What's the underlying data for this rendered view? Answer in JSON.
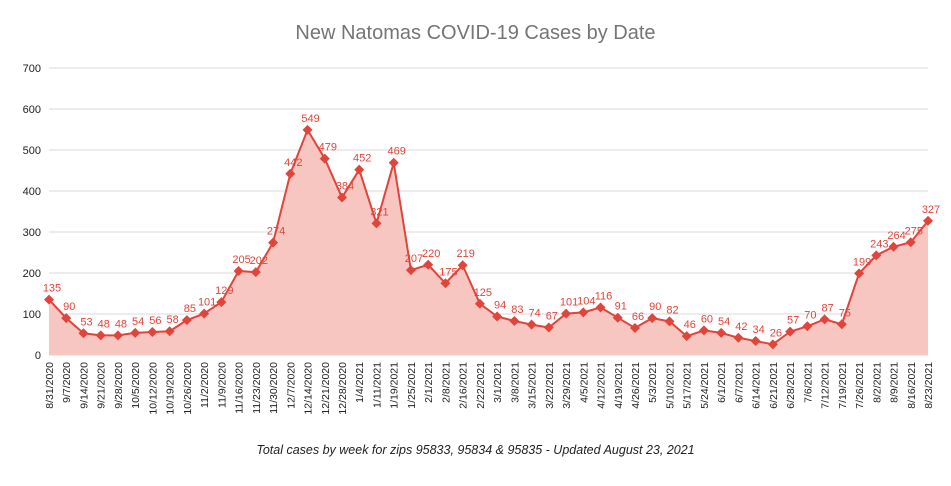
{
  "chart_data": {
    "type": "area",
    "title": "New Natomas COVID-19 Cases by Date",
    "caption": "Total cases by week for zips 95833, 95834 & 95835 - Updated August 23, 2021",
    "ylim": [
      0,
      700
    ],
    "yticks": [
      "0",
      "100",
      "200",
      "300",
      "400",
      "500",
      "600",
      "700"
    ],
    "grid": true,
    "categories": [
      "8/31/2020",
      "9/7/2020",
      "9/14/2020",
      "9/21/2020",
      "9/28/2020",
      "10/5/2020",
      "10/12/2020",
      "10/19/2020",
      "10/26/2020",
      "11/2/2020",
      "11/9/2020",
      "11/16/2020",
      "11/23/2020",
      "11/30/2020",
      "12/7/2020",
      "12/14/2020",
      "12/21/2020",
      "12/28/2020",
      "1/4/2021",
      "1/11/2021",
      "1/19/2021",
      "1/25/2021",
      "2/1/2021",
      "2/8/2021",
      "2/16/2021",
      "2/22/2021",
      "3/1/2021",
      "3/8/2021",
      "3/15/2021",
      "3/22/2021",
      "3/29/2021",
      "4/5/2021",
      "4/12/2021",
      "4/19/2021",
      "4/26/2021",
      "5/3/2021",
      "5/10/2021",
      "5/17/2021",
      "5/24/2021",
      "6/1/2021",
      "6/7/2021",
      "6/14/2021",
      "6/21/2021",
      "6/28/2021",
      "7/6/2021",
      "7/12/2021",
      "7/19/2021",
      "7/26/2021",
      "8/2/2021",
      "8/9/2021",
      "8/16/2021",
      "8/23/2021"
    ],
    "series": [
      {
        "values": [
          135,
          90,
          53,
          48,
          48,
          54,
          56,
          58,
          85,
          101,
          129,
          205,
          202,
          274,
          442,
          549,
          479,
          384,
          452,
          321,
          469,
          207,
          220,
          175,
          219,
          125,
          94,
          83,
          74,
          67,
          101,
          104,
          116,
          91,
          66,
          90,
          82,
          46,
          60,
          54,
          42,
          34,
          26,
          57,
          70,
          87,
          75,
          199,
          243,
          264,
          275,
          327
        ],
        "color": "#e0453b",
        "fill": "#f8c6c1"
      }
    ]
  }
}
